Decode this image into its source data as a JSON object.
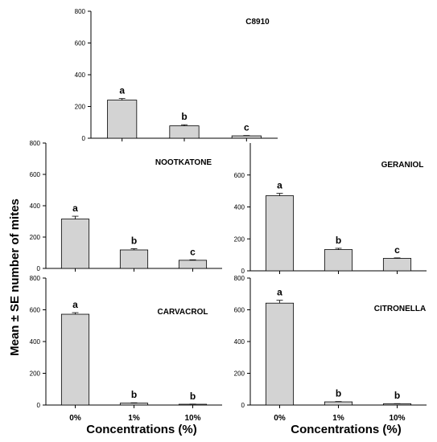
{
  "figure": {
    "ylabel": "Mean ± SE number of mites",
    "xlabel": "Concentrations (%)"
  },
  "chart_data": [
    {
      "type": "bar",
      "title": "C8910",
      "categories": [
        "0%",
        "1%",
        "10%"
      ],
      "values": [
        240,
        78,
        15
      ],
      "errors": [
        10,
        7,
        2
      ],
      "letters": [
        "a",
        "b",
        "c"
      ],
      "ylim": [
        0,
        800
      ],
      "yticks": [
        0,
        200,
        400,
        600,
        800
      ],
      "show_xticklabels": false
    },
    {
      "type": "bar",
      "title": "NOOTKATONE",
      "categories": [
        "0%",
        "1%",
        "10%"
      ],
      "values": [
        315,
        118,
        52
      ],
      "errors": [
        18,
        8,
        3
      ],
      "letters": [
        "a",
        "b",
        "c"
      ],
      "ylim": [
        0,
        800
      ],
      "yticks": [
        0,
        200,
        400,
        600,
        800
      ],
      "show_xticklabels": false
    },
    {
      "type": "bar",
      "title": "GERANIOL",
      "categories": [
        "0%",
        "1%",
        "10%"
      ],
      "values": [
        470,
        133,
        78
      ],
      "errors": [
        15,
        8,
        3
      ],
      "letters": [
        "a",
        "b",
        "c"
      ],
      "ylim": [
        0,
        800
      ],
      "yticks": [
        0,
        200,
        400,
        600
      ],
      "show_xticklabels": false
    },
    {
      "type": "bar",
      "title": "CARVACROL",
      "categories": [
        "0%",
        "1%",
        "10%"
      ],
      "values": [
        572,
        12,
        5
      ],
      "errors": [
        10,
        2,
        1
      ],
      "letters": [
        "a",
        "b",
        "b"
      ],
      "ylim": [
        0,
        800
      ],
      "yticks": [
        0,
        200,
        400,
        600,
        800
      ],
      "show_xticklabels": true
    },
    {
      "type": "bar",
      "title": "CITRONELLA",
      "categories": [
        "0%",
        "1%",
        "10%"
      ],
      "values": [
        642,
        20,
        8
      ],
      "errors": [
        18,
        2,
        1
      ],
      "letters": [
        "a",
        "b",
        "b"
      ],
      "ylim": [
        0,
        800
      ],
      "yticks": [
        0,
        200,
        400,
        600,
        800
      ],
      "show_xticklabels": true
    }
  ]
}
